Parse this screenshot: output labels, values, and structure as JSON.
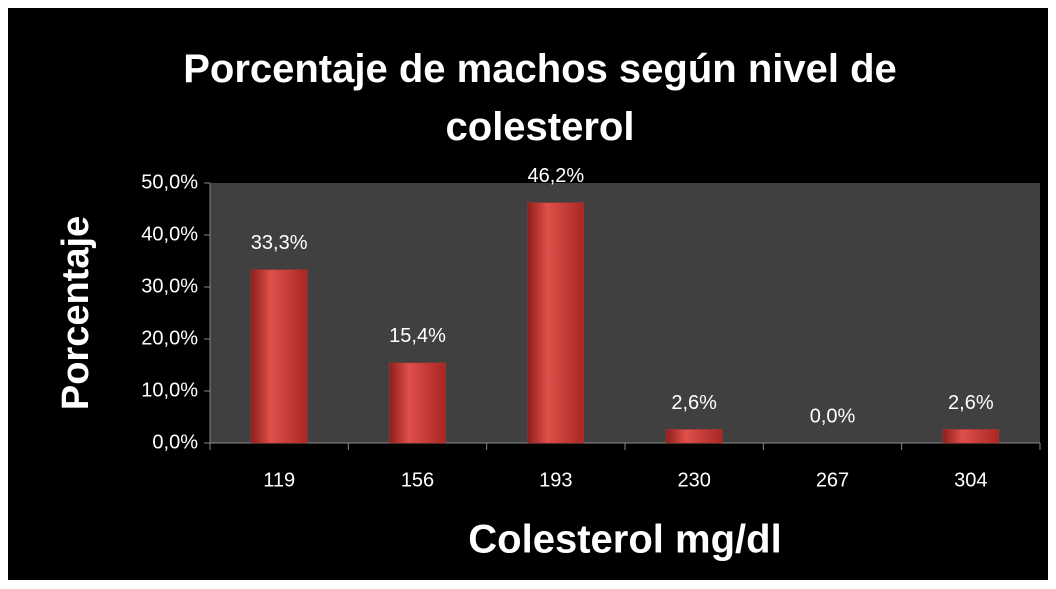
{
  "chart_data": {
    "type": "bar",
    "title": "Porcentaje de machos según nivel de colesterol",
    "x_label": "Colesterol mg/dl",
    "y_label": "Porcentaje",
    "categories": [
      "119",
      "156",
      "193",
      "230",
      "267",
      "304"
    ],
    "values": [
      33.3,
      15.4,
      46.2,
      2.6,
      0,
      2.6
    ],
    "value_labels": [
      "33,3%",
      "15,4%",
      "46,2%",
      "2,6%",
      "0,0%",
      "2,6%"
    ],
    "color": "#c0302c",
    "ylim": [
      0,
      50
    ],
    "yticks": [
      {
        "value": 0,
        "label": "0,0%"
      },
      {
        "value": 10,
        "label": "10,0%"
      },
      {
        "value": 20,
        "label": "20,0%"
      },
      {
        "value": 30,
        "label": "30,0%"
      },
      {
        "value": 40,
        "label": "40,0%"
      },
      {
        "value": 50,
        "label": "50,0%"
      }
    ],
    "grid": false
  }
}
